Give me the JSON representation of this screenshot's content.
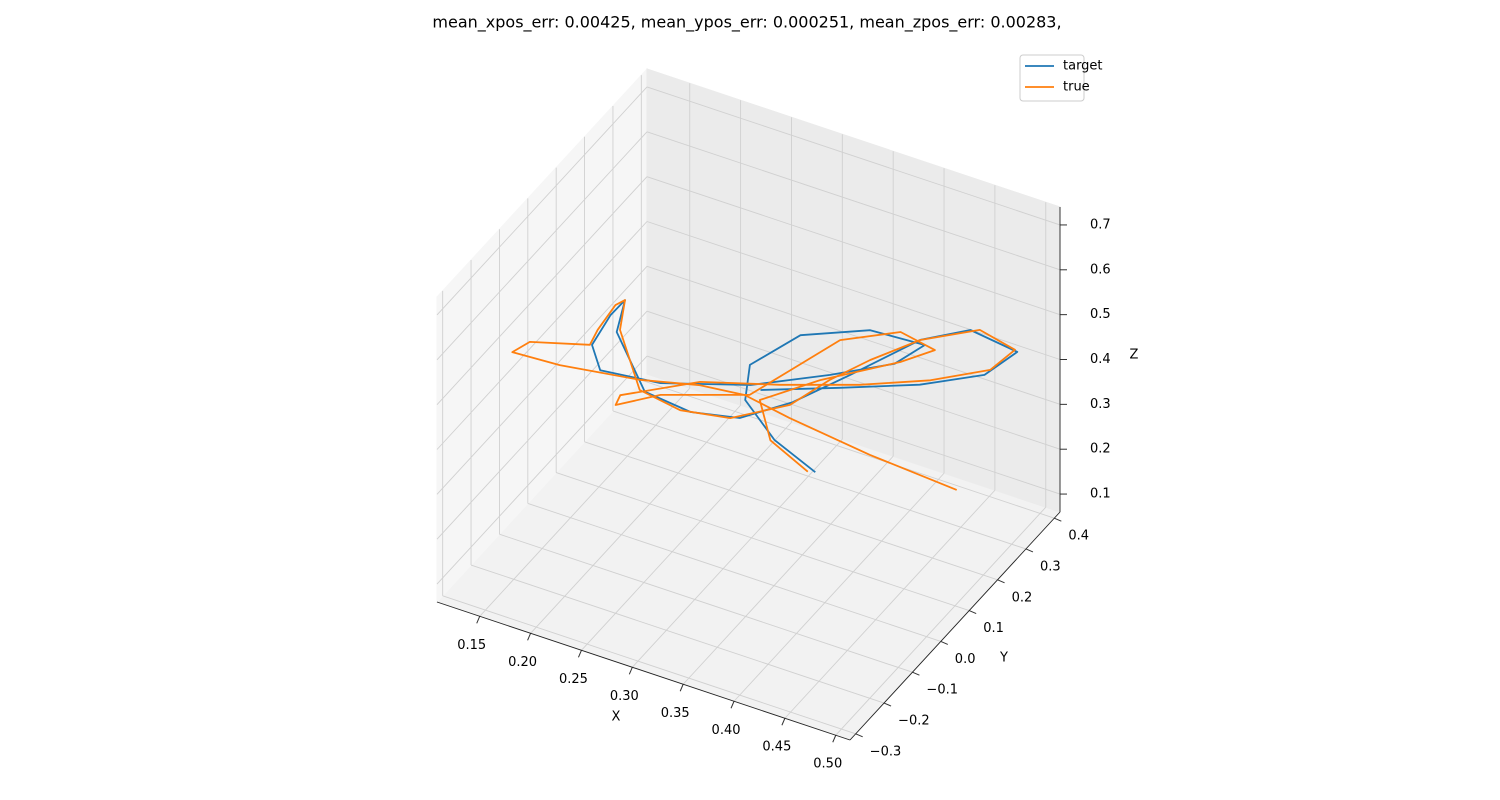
{
  "chart_data": {
    "type": "line3d",
    "title": "mean_xpos_err:  0.00425, mean_ypos_err:  0.000251, mean_zpos_err:  0.00283,",
    "xlabel": "X",
    "ylabel": "Y",
    "zlabel": "Z",
    "xlim": [
      0.108,
      0.514
    ],
    "ylim": [
      -0.32,
      0.42
    ],
    "zlim": [
      0.06,
      0.74
    ],
    "xticks": [
      0.15,
      {
        "value": 0.2,
        "label": "0.20"
      },
      0.25,
      {
        "value": 0.3,
        "label": "0.30"
      },
      0.35,
      {
        "value": 0.4,
        "label": "0.40"
      },
      0.45,
      {
        "value": 0.5,
        "label": "0.50"
      }
    ],
    "yticks": [
      {
        "value": -0.3,
        "label": "−0.3"
      },
      {
        "value": -0.2,
        "label": "−0.2"
      },
      {
        "value": -0.1,
        "label": "−0.1"
      },
      {
        "value": 0,
        "label": "0.0"
      },
      0.1,
      0.2,
      0.3,
      0.4
    ],
    "zticks": [
      0.1,
      0.2,
      0.3,
      0.4,
      0.5,
      0.6,
      0.7
    ],
    "grid": true,
    "legend": "upper right",
    "series": [
      {
        "name": "target",
        "color": "#1f77b4",
        "x": [
          0.346,
          0.318,
          0.293,
          0.297,
          0.33,
          0.379,
          0.421,
          0.402,
          0.355,
          0.299,
          0.23,
          0.182,
          0.177,
          0.192,
          0.208,
          0.199,
          0.218,
          0.254,
          0.292,
          0.327,
          0.37,
          0.414,
          0.448,
          0.489,
          0.471,
          0.426,
          0.368,
          0.31
        ],
        "y": [
          0.16,
          0.117,
          0.103,
          0.105,
          0.165,
          0.235,
          0.277,
          0.239,
          0.18,
          0.1,
          0.03,
          -0.01,
          -0.021,
          -0.01,
          -0.016,
          -0.013,
          0.018,
          0.05,
          0.087,
          0.148,
          0.196,
          0.286,
          0.341,
          0.359,
          0.308,
          0.241,
          0.167,
          0.096
        ],
        "z": [
          0.2,
          0.28,
          0.36,
          0.44,
          0.49,
          0.49,
          0.46,
          0.43,
          0.41,
          0.4,
          0.4,
          0.42,
          0.48,
          0.55,
          0.6,
          0.52,
          0.38,
          0.34,
          0.33,
          0.35,
          0.41,
          0.46,
          0.47,
          0.44,
          0.41,
          0.4,
          0.4,
          0.4
        ]
      },
      {
        "name": "true",
        "color": "#ff7f0e",
        "x": [
          0.449,
          0.381,
          0.32,
          0.286,
          0.255,
          0.212,
          0.148,
          0.122,
          0.125,
          0.166,
          0.177,
          0.198,
          0.208,
          0.2,
          0.213,
          0.245,
          0.285,
          0.327,
          0.355,
          0.381,
          0.411,
          0.455,
          0.489,
          0.475,
          0.431,
          0.381,
          0.321,
          0.259,
          0.202,
          0.199,
          0.232,
          0.299,
          0.325,
          0.357,
          0.4,
          0.429,
          0.405,
          0.348,
          0.304,
          0.315,
          0.34
        ],
        "y": [
          0.289,
          0.226,
          0.162,
          0.126,
          0.08,
          0.021,
          -0.031,
          -0.105,
          -0.054,
          0.011,
          -0.001,
          -0.014,
          -0.016,
          -0.005,
          0.018,
          0.046,
          0.079,
          0.139,
          0.178,
          0.228,
          0.297,
          0.349,
          0.351,
          0.314,
          0.261,
          0.191,
          0.125,
          0.066,
          -0.011,
          -0.017,
          0.023,
          0.097,
          0.148,
          0.208,
          0.267,
          0.284,
          0.248,
          0.17,
          0.115,
          0.113,
          0.155
        ],
        "z": [
          0.15,
          0.22,
          0.3,
          0.35,
          0.38,
          0.4,
          0.42,
          0.48,
          0.47,
          0.45,
          0.5,
          0.58,
          0.6,
          0.52,
          0.38,
          0.34,
          0.33,
          0.35,
          0.4,
          0.43,
          0.45,
          0.47,
          0.45,
          0.42,
          0.4,
          0.4,
          0.4,
          0.4,
          0.38,
          0.36,
          0.38,
          0.38,
          0.42,
          0.47,
          0.48,
          0.45,
          0.43,
          0.4,
          0.36,
          0.28,
          0.2
        ]
      }
    ]
  }
}
